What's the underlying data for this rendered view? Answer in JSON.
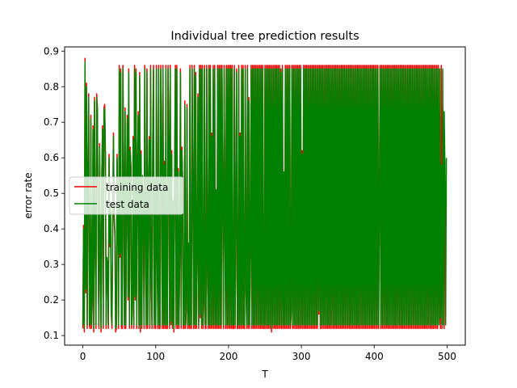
{
  "chart_data": {
    "type": "line",
    "title": "Individual tree prediction results",
    "xlabel": "T",
    "ylabel": "error rate",
    "xlim": [
      -25,
      525
    ],
    "ylim": [
      0.073,
      0.912
    ],
    "xticks": [
      0,
      100,
      200,
      300,
      400,
      500
    ],
    "xtick_labels": [
      "0",
      "100",
      "200",
      "300",
      "400",
      "500"
    ],
    "yticks": [
      0.1,
      0.2,
      0.3,
      0.4,
      0.5,
      0.6,
      0.7,
      0.8,
      0.9
    ],
    "ytick_labels": [
      "0.1",
      "0.2",
      "0.3",
      "0.4",
      "0.5",
      "0.6",
      "0.7",
      "0.8",
      "0.9"
    ],
    "legend": {
      "placement": "center-left"
    },
    "series": [
      {
        "name": "training data",
        "color": "#ff0000",
        "values": [
          0.12,
          0.41,
          0.11,
          0.88,
          0.22,
          0.81,
          0.12,
          0.57,
          0.78,
          0.13,
          0.12,
          0.72,
          0.12,
          0.2,
          0.69,
          0.11,
          0.77,
          0.35,
          0.12,
          0.78,
          0.74,
          0.34,
          0.12,
          0.64,
          0.33,
          0.11,
          0.54,
          0.69,
          0.12,
          0.74,
          0.75,
          0.61,
          0.12,
          0.31,
          0.29,
          0.12,
          0.61,
          0.35,
          0.45,
          0.16,
          0.12,
          0.4,
          0.67,
          0.43,
          0.38,
          0.11,
          0.12,
          0.61,
          0.47,
          0.12,
          0.86,
          0.32,
          0.85,
          0.12,
          0.12,
          0.86,
          0.53,
          0.12,
          0.74,
          0.12,
          0.49,
          0.72,
          0.2,
          0.85,
          0.12,
          0.63,
          0.57,
          0.12,
          0.18,
          0.66,
          0.12,
          0.86,
          0.2,
          0.85,
          0.12,
          0.56,
          0.73,
          0.12,
          0.84,
          0.11,
          0.62,
          0.12,
          0.54,
          0.47,
          0.12,
          0.86,
          0.39,
          0.12,
          0.85,
          0.12,
          0.51,
          0.66,
          0.12,
          0.86,
          0.24,
          0.12,
          0.66,
          0.86,
          0.12,
          0.53,
          0.12,
          0.86,
          0.32,
          0.12,
          0.86,
          0.12,
          0.12,
          0.86,
          0.63,
          0.12,
          0.86,
          0.12,
          0.59,
          0.12,
          0.86,
          0.12,
          0.12,
          0.86,
          0.66,
          0.12,
          0.86,
          0.13,
          0.62,
          0.12,
          0.47,
          0.11,
          0.56,
          0.86,
          0.12,
          0.86,
          0.12,
          0.57,
          0.12,
          0.33,
          0.85,
          0.12,
          0.63,
          0.53,
          0.12,
          0.12,
          0.76,
          0.12,
          0.17,
          0.75,
          0.12,
          0.35,
          0.12,
          0.86,
          0.12,
          0.12,
          0.86,
          0.5,
          0.12,
          0.86,
          0.12,
          0.84,
          0.12,
          0.32,
          0.78,
          0.12,
          0.86,
          0.15,
          0.86,
          0.12,
          0.86,
          0.12,
          0.19,
          0.86,
          0.12,
          0.12,
          0.86,
          0.29,
          0.12,
          0.86,
          0.12,
          0.86,
          0.12,
          0.67,
          0.12,
          0.86,
          0.12,
          0.86,
          0.12,
          0.5,
          0.12,
          0.86,
          0.12,
          0.86,
          0.12,
          0.86,
          0.12,
          0.86,
          0.5,
          0.12,
          0.86,
          0.41,
          0.12,
          0.86,
          0.12,
          0.86,
          0.12,
          0.86,
          0.12,
          0.86,
          0.12,
          0.86,
          0.12,
          0.12,
          0.86,
          0.12,
          0.43,
          0.85,
          0.12,
          0.12,
          0.86,
          0.12,
          0.67,
          0.12,
          0.86,
          0.12,
          0.86,
          0.12,
          0.12,
          0.86,
          0.22,
          0.12,
          0.86,
          0.12,
          0.77,
          0.12,
          0.34,
          0.86,
          0.12,
          0.86,
          0.12,
          0.86,
          0.12,
          0.86,
          0.12,
          0.86,
          0.12,
          0.86,
          0.12,
          0.86,
          0.12,
          0.86,
          0.12,
          0.86,
          0.12,
          0.12,
          0.86,
          0.12,
          0.86,
          0.12,
          0.86,
          0.12,
          0.86,
          0.12,
          0.86,
          0.11,
          0.86,
          0.12,
          0.86,
          0.12,
          0.86,
          0.12,
          0.86,
          0.12,
          0.86,
          0.12,
          0.86,
          0.12,
          0.85,
          0.12,
          0.86,
          0.12,
          0.55,
          0.12,
          0.86,
          0.12,
          0.86,
          0.12,
          0.86,
          0.12,
          0.86,
          0.12,
          0.16,
          0.86,
          0.12,
          0.86,
          0.12,
          0.86,
          0.12,
          0.86,
          0.12,
          0.86,
          0.12,
          0.86,
          0.12,
          0.86,
          0.12,
          0.62,
          0.12,
          0.86,
          0.12,
          0.86,
          0.12,
          0.86,
          0.12,
          0.86,
          0.12,
          0.86,
          0.12,
          0.86,
          0.12,
          0.86,
          0.12,
          0.86,
          0.12,
          0.86,
          0.12,
          0.86,
          0.12,
          0.86,
          0.16,
          0.86,
          0.12,
          0.86,
          0.12,
          0.86,
          0.12,
          0.86,
          0.12,
          0.86,
          0.12,
          0.86,
          0.12,
          0.86,
          0.12,
          0.86,
          0.12,
          0.86,
          0.12,
          0.86,
          0.12,
          0.86,
          0.12,
          0.86,
          0.12,
          0.86,
          0.12,
          0.86,
          0.12,
          0.86,
          0.12,
          0.86,
          0.12,
          0.86,
          0.12,
          0.86,
          0.12,
          0.86,
          0.12,
          0.86,
          0.12,
          0.86,
          0.12,
          0.86,
          0.12,
          0.86,
          0.12,
          0.86,
          0.12,
          0.86,
          0.12,
          0.86,
          0.12,
          0.86,
          0.12,
          0.86,
          0.12,
          0.86,
          0.12,
          0.86,
          0.12,
          0.86,
          0.12,
          0.86,
          0.12,
          0.86,
          0.12,
          0.86,
          0.12,
          0.86,
          0.12,
          0.86,
          0.12,
          0.86,
          0.12,
          0.86,
          0.12,
          0.86,
          0.12,
          0.86,
          0.12,
          0.86,
          0.12,
          0.45,
          0.86,
          0.12,
          0.86,
          0.12,
          0.86,
          0.12,
          0.86,
          0.12,
          0.86,
          0.12,
          0.86,
          0.12,
          0.86,
          0.12,
          0.86,
          0.12,
          0.86,
          0.12,
          0.86,
          0.12,
          0.86,
          0.12,
          0.86,
          0.12,
          0.86,
          0.12,
          0.86,
          0.12,
          0.86,
          0.12,
          0.86,
          0.12,
          0.86,
          0.12,
          0.86,
          0.12,
          0.86,
          0.12,
          0.86,
          0.12,
          0.86,
          0.12,
          0.86,
          0.12,
          0.86,
          0.12,
          0.86,
          0.12,
          0.86,
          0.12,
          0.86,
          0.12,
          0.86,
          0.12,
          0.86,
          0.12,
          0.86,
          0.12,
          0.86,
          0.12,
          0.86,
          0.12,
          0.86,
          0.12,
          0.86,
          0.12,
          0.86,
          0.12,
          0.86,
          0.12,
          0.86,
          0.12,
          0.86,
          0.12,
          0.86,
          0.12,
          0.86,
          0.12,
          0.86,
          0.12,
          0.86,
          0.14,
          0.59,
          0.12,
          0.86,
          0.12,
          0.74,
          0.57,
          0.12,
          0.59
        ]
      },
      {
        "name": "test data",
        "color": "#008000",
        "values": [
          0.13,
          0.4,
          0.12,
          0.87,
          0.23,
          0.8,
          0.13,
          0.56,
          0.77,
          0.14,
          0.13,
          0.71,
          0.13,
          0.21,
          0.68,
          0.12,
          0.76,
          0.36,
          0.13,
          0.77,
          0.73,
          0.35,
          0.13,
          0.63,
          0.34,
          0.12,
          0.55,
          0.68,
          0.13,
          0.73,
          0.74,
          0.6,
          0.13,
          0.32,
          0.3,
          0.13,
          0.6,
          0.36,
          0.46,
          0.17,
          0.13,
          0.41,
          0.66,
          0.44,
          0.39,
          0.12,
          0.13,
          0.6,
          0.48,
          0.13,
          0.85,
          0.33,
          0.84,
          0.13,
          0.13,
          0.85,
          0.54,
          0.13,
          0.73,
          0.13,
          0.5,
          0.71,
          0.21,
          0.84,
          0.13,
          0.62,
          0.58,
          0.13,
          0.19,
          0.65,
          0.13,
          0.85,
          0.21,
          0.84,
          0.13,
          0.57,
          0.72,
          0.13,
          0.83,
          0.12,
          0.61,
          0.13,
          0.55,
          0.48,
          0.13,
          0.85,
          0.4,
          0.13,
          0.84,
          0.13,
          0.52,
          0.65,
          0.13,
          0.85,
          0.25,
          0.13,
          0.65,
          0.85,
          0.13,
          0.54,
          0.13,
          0.85,
          0.33,
          0.13,
          0.85,
          0.13,
          0.13,
          0.85,
          0.62,
          0.13,
          0.85,
          0.13,
          0.58,
          0.13,
          0.85,
          0.13,
          0.13,
          0.85,
          0.65,
          0.13,
          0.85,
          0.14,
          0.61,
          0.13,
          0.48,
          0.12,
          0.55,
          0.85,
          0.13,
          0.85,
          0.13,
          0.56,
          0.13,
          0.34,
          0.84,
          0.13,
          0.62,
          0.54,
          0.13,
          0.13,
          0.75,
          0.13,
          0.18,
          0.74,
          0.13,
          0.36,
          0.13,
          0.85,
          0.13,
          0.13,
          0.85,
          0.51,
          0.13,
          0.85,
          0.13,
          0.83,
          0.13,
          0.33,
          0.77,
          0.13,
          0.85,
          0.16,
          0.85,
          0.13,
          0.85,
          0.13,
          0.2,
          0.85,
          0.13,
          0.13,
          0.85,
          0.3,
          0.13,
          0.85,
          0.13,
          0.85,
          0.13,
          0.66,
          0.13,
          0.85,
          0.13,
          0.85,
          0.13,
          0.51,
          0.13,
          0.85,
          0.13,
          0.85,
          0.13,
          0.85,
          0.13,
          0.85,
          0.51,
          0.13,
          0.85,
          0.42,
          0.13,
          0.85,
          0.13,
          0.85,
          0.13,
          0.85,
          0.13,
          0.85,
          0.13,
          0.85,
          0.13,
          0.13,
          0.85,
          0.13,
          0.44,
          0.84,
          0.13,
          0.13,
          0.85,
          0.13,
          0.66,
          0.13,
          0.85,
          0.13,
          0.85,
          0.13,
          0.13,
          0.85,
          0.23,
          0.13,
          0.85,
          0.13,
          0.76,
          0.13,
          0.35,
          0.85,
          0.13,
          0.85,
          0.13,
          0.85,
          0.13,
          0.85,
          0.13,
          0.85,
          0.13,
          0.85,
          0.13,
          0.85,
          0.13,
          0.85,
          0.13,
          0.85,
          0.13,
          0.13,
          0.85,
          0.13,
          0.85,
          0.13,
          0.85,
          0.13,
          0.85,
          0.13,
          0.85,
          0.12,
          0.85,
          0.13,
          0.85,
          0.13,
          0.85,
          0.13,
          0.85,
          0.13,
          0.85,
          0.13,
          0.85,
          0.13,
          0.84,
          0.13,
          0.85,
          0.13,
          0.56,
          0.13,
          0.85,
          0.13,
          0.85,
          0.13,
          0.85,
          0.13,
          0.85,
          0.13,
          0.17,
          0.85,
          0.13,
          0.85,
          0.13,
          0.85,
          0.13,
          0.85,
          0.13,
          0.85,
          0.13,
          0.85,
          0.13,
          0.85,
          0.13,
          0.61,
          0.13,
          0.85,
          0.13,
          0.85,
          0.13,
          0.85,
          0.13,
          0.85,
          0.13,
          0.85,
          0.13,
          0.85,
          0.13,
          0.85,
          0.13,
          0.85,
          0.13,
          0.85,
          0.13,
          0.85,
          0.13,
          0.85,
          0.17,
          0.85,
          0.13,
          0.85,
          0.13,
          0.85,
          0.13,
          0.85,
          0.13,
          0.85,
          0.13,
          0.85,
          0.13,
          0.85,
          0.13,
          0.85,
          0.13,
          0.85,
          0.13,
          0.85,
          0.13,
          0.85,
          0.13,
          0.85,
          0.13,
          0.85,
          0.13,
          0.85,
          0.13,
          0.85,
          0.13,
          0.85,
          0.13,
          0.85,
          0.13,
          0.85,
          0.13,
          0.85,
          0.13,
          0.85,
          0.13,
          0.85,
          0.13,
          0.85,
          0.13,
          0.85,
          0.13,
          0.85,
          0.13,
          0.85,
          0.13,
          0.85,
          0.13,
          0.85,
          0.13,
          0.85,
          0.13,
          0.85,
          0.13,
          0.85,
          0.13,
          0.85,
          0.13,
          0.85,
          0.13,
          0.85,
          0.13,
          0.85,
          0.13,
          0.85,
          0.13,
          0.85,
          0.13,
          0.85,
          0.13,
          0.85,
          0.13,
          0.85,
          0.13,
          0.85,
          0.13,
          0.85,
          0.13,
          0.46,
          0.85,
          0.13,
          0.85,
          0.13,
          0.85,
          0.13,
          0.85,
          0.13,
          0.85,
          0.13,
          0.85,
          0.13,
          0.85,
          0.13,
          0.85,
          0.13,
          0.85,
          0.13,
          0.85,
          0.13,
          0.85,
          0.13,
          0.85,
          0.13,
          0.85,
          0.13,
          0.85,
          0.13,
          0.85,
          0.13,
          0.85,
          0.13,
          0.85,
          0.13,
          0.85,
          0.13,
          0.85,
          0.13,
          0.85,
          0.13,
          0.85,
          0.13,
          0.85,
          0.13,
          0.85,
          0.13,
          0.85,
          0.13,
          0.85,
          0.13,
          0.85,
          0.13,
          0.85,
          0.13,
          0.85,
          0.13,
          0.85,
          0.13,
          0.85,
          0.13,
          0.85,
          0.13,
          0.85,
          0.13,
          0.85,
          0.13,
          0.85,
          0.13,
          0.85,
          0.13,
          0.85,
          0.13,
          0.85,
          0.13,
          0.85,
          0.13,
          0.85,
          0.13,
          0.85,
          0.13,
          0.85,
          0.13,
          0.85,
          0.15,
          0.58,
          0.13,
          0.85,
          0.13,
          0.73,
          0.58,
          0.13,
          0.6
        ]
      }
    ]
  }
}
